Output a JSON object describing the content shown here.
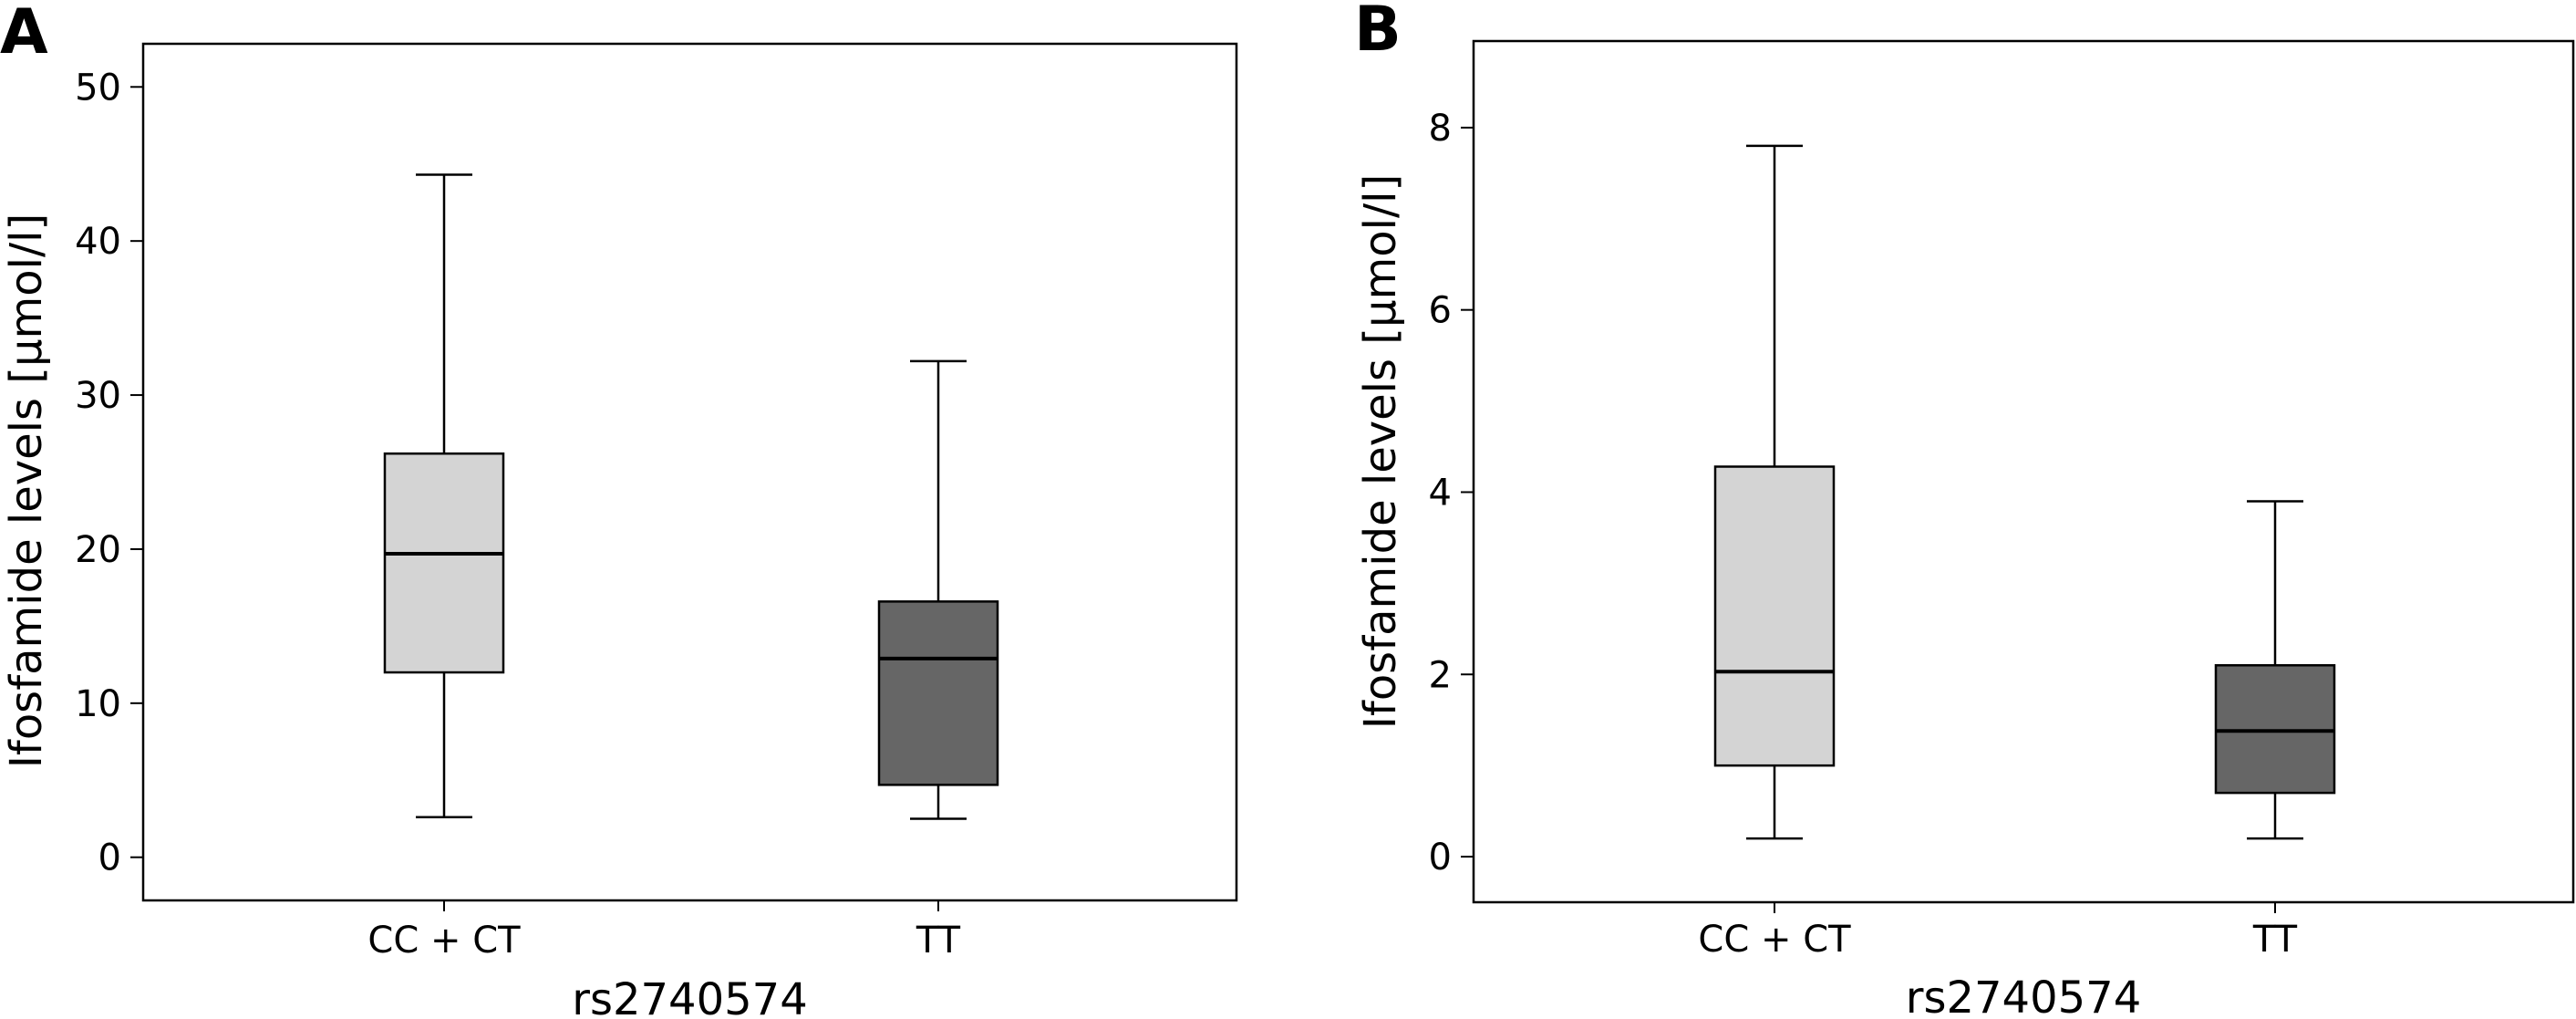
{
  "chart_data": [
    {
      "panel": "A",
      "type": "boxplot",
      "title": "",
      "xlabel": "rs2740574",
      "ylabel": "Ifosfamide levels [µmol/l]",
      "ylim": [
        -2.8,
        52.8
      ],
      "yticks": [
        0,
        10,
        20,
        30,
        40,
        50
      ],
      "categories": [
        "CC + CT",
        "TT"
      ],
      "boxes": [
        {
          "category": "CC + CT",
          "min": 2.6,
          "q1": 12.0,
          "median": 19.7,
          "q3": 26.2,
          "max": 44.3,
          "color": "#d4d4d4"
        },
        {
          "category": "TT",
          "min": 2.5,
          "q1": 4.7,
          "median": 12.9,
          "q3": 16.6,
          "max": 32.2,
          "color": "#666666"
        }
      ],
      "grid": false
    },
    {
      "panel": "B",
      "type": "boxplot",
      "title": "",
      "xlabel": "rs2740574",
      "ylabel": "Ifosfamide levels [µmol/l]",
      "ylim": [
        -0.5,
        8.95
      ],
      "yticks": [
        0,
        2,
        4,
        6,
        8
      ],
      "categories": [
        "CC + CT",
        "TT"
      ],
      "boxes": [
        {
          "category": "CC + CT",
          "min": 0.2,
          "q1": 1.0,
          "median": 2.03,
          "q3": 4.28,
          "max": 7.8,
          "color": "#d4d4d4"
        },
        {
          "category": "TT",
          "min": 0.2,
          "q1": 0.7,
          "median": 1.38,
          "q3": 2.1,
          "max": 3.9,
          "color": "#666666"
        }
      ],
      "grid": false
    }
  ]
}
